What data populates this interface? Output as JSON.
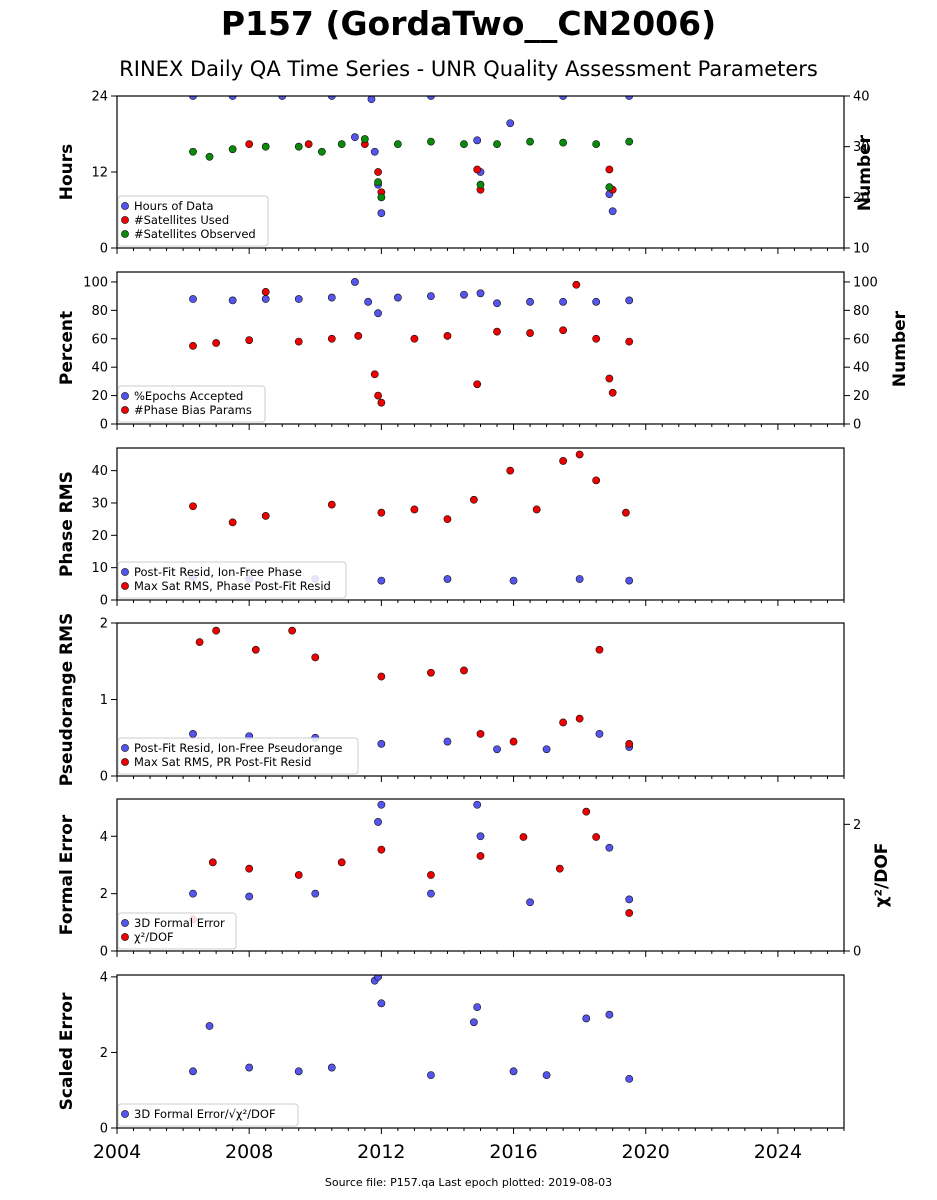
{
  "title": "P157 (GordaTwo__CN2006)",
  "subtitle": "RINEX Daily QA Time Series - UNR Quality Assessment Parameters",
  "footer": "Source file: P157.qa Last epoch plotted: 2019-08-03",
  "colors": {
    "blue": "#5555ee",
    "red": "#ee0000",
    "green": "#0a8a0a",
    "edge": "#111111"
  },
  "x_axis": {
    "min": 2004,
    "max": 2026,
    "ticks": [
      "2004",
      "2008",
      "2012",
      "2016",
      "2020",
      "2024"
    ]
  },
  "chart_data": [
    {
      "type": "scatter",
      "id": "hours",
      "ylabel": "Hours",
      "ylim": [
        0,
        24
      ],
      "yticks": [
        "0",
        "12",
        "24"
      ],
      "y2label": "Number",
      "y2lim": [
        10,
        40
      ],
      "y2ticks": [
        "10",
        "20",
        "30",
        "40"
      ],
      "legend_placement": "lower-left",
      "series": [
        {
          "name": "Hours of Data",
          "color": "blue",
          "axis": "left",
          "x": [
            2006.3,
            2007.5,
            2009.0,
            2010.5,
            2011.2,
            2011.7,
            2011.8,
            2011.9,
            2012.0,
            2013.5,
            2014.9,
            2015.0,
            2015.9,
            2017.5,
            2018.9,
            2019.0,
            2019.5
          ],
          "y": [
            24,
            24,
            24,
            24,
            17.5,
            23.5,
            15.2,
            10.0,
            5.5,
            24,
            17,
            12,
            19.7,
            24,
            8.5,
            5.8,
            24
          ]
        },
        {
          "name": "#Satellites Used",
          "color": "red",
          "axis": "right",
          "x": [
            2008.0,
            2009.8,
            2011.5,
            2011.9,
            2012.0,
            2014.9,
            2015.0,
            2018.9,
            2019.0
          ],
          "y": [
            30.5,
            30.5,
            30.5,
            25.0,
            21.0,
            25.5,
            21.5,
            25.5,
            21.5
          ]
        },
        {
          "name": "#Satellites Observed",
          "color": "green",
          "axis": "right",
          "x": [
            2006.3,
            2006.8,
            2007.5,
            2008.5,
            2009.5,
            2010.2,
            2010.8,
            2011.5,
            2011.9,
            2012.0,
            2012.5,
            2013.5,
            2014.5,
            2015.0,
            2015.5,
            2016.5,
            2017.5,
            2018.5,
            2018.9,
            2019.5
          ],
          "y": [
            29,
            28,
            29.5,
            30,
            30,
            29,
            30.5,
            31.5,
            23,
            20,
            30.5,
            31,
            30.5,
            22.5,
            30.5,
            31,
            30.8,
            30.5,
            22,
            31
          ]
        }
      ]
    },
    {
      "type": "scatter",
      "id": "percent",
      "ylabel": "Percent",
      "ylim": [
        0,
        107
      ],
      "yticks": [
        "0",
        "20",
        "40",
        "60",
        "80",
        "100"
      ],
      "y2label": "Number",
      "y2lim": [
        0,
        107
      ],
      "y2ticks": [
        "0",
        "20",
        "40",
        "60",
        "80",
        "100"
      ],
      "legend_placement": "lower-left",
      "series": [
        {
          "name": "%Epochs Accepted",
          "color": "blue",
          "axis": "left",
          "x": [
            2006.3,
            2007.5,
            2008.5,
            2009.5,
            2010.5,
            2011.2,
            2011.6,
            2011.9,
            2012.5,
            2013.5,
            2014.5,
            2015.0,
            2015.5,
            2016.5,
            2017.5,
            2018.5,
            2019.5
          ],
          "y": [
            88,
            87,
            88,
            88,
            89,
            100,
            86,
            78,
            89,
            90,
            91,
            92,
            85,
            86,
            86,
            86,
            87
          ]
        },
        {
          "name": "#Phase Bias Params",
          "color": "red",
          "axis": "right",
          "x": [
            2006.3,
            2007.0,
            2008.0,
            2008.5,
            2009.5,
            2010.5,
            2011.3,
            2011.8,
            2011.9,
            2012.0,
            2013.0,
            2014.0,
            2014.9,
            2015.5,
            2016.5,
            2017.5,
            2017.9,
            2018.5,
            2018.9,
            2019.0,
            2019.5
          ],
          "y": [
            55,
            57,
            59,
            93,
            58,
            60,
            62,
            35,
            20,
            15,
            60,
            62,
            28,
            65,
            64,
            66,
            98,
            60,
            32,
            22,
            58
          ]
        }
      ]
    },
    {
      "type": "scatter",
      "id": "phase",
      "ylabel": "Phase RMS",
      "ylim": [
        0,
        47
      ],
      "yticks": [
        "0",
        "10",
        "20",
        "30",
        "40"
      ],
      "legend_placement": "lower-left",
      "series": [
        {
          "name": "Post-Fit Resid, Ion-Free Phase",
          "color": "blue",
          "axis": "left",
          "x": [
            2006.3,
            2008.0,
            2010.0,
            2012.0,
            2014.0,
            2016.0,
            2018.0,
            2019.5
          ],
          "y": [
            7,
            6.5,
            6.5,
            6,
            6.5,
            6,
            6.5,
            6
          ]
        },
        {
          "name": "Max Sat RMS, Phase Post-Fit Resid",
          "color": "red",
          "axis": "left",
          "x": [
            2006.3,
            2007.5,
            2008.5,
            2010.5,
            2012.0,
            2013.0,
            2014.0,
            2014.8,
            2015.9,
            2016.7,
            2017.5,
            2018.0,
            2018.5,
            2019.4
          ],
          "y": [
            29,
            24,
            26,
            29.5,
            27,
            28,
            25,
            31,
            40,
            28,
            43,
            45,
            37,
            27
          ]
        }
      ]
    },
    {
      "type": "scatter",
      "id": "pseudorange",
      "ylabel": "Pseudorange RMS",
      "ylim": [
        0,
        2
      ],
      "yticks": [
        "0",
        "1",
        "2"
      ],
      "legend_placement": "lower-left",
      "series": [
        {
          "name": "Post-Fit Resid, Ion-Free Pseudorange",
          "color": "blue",
          "axis": "left",
          "x": [
            2006.3,
            2008.0,
            2010.0,
            2012.0,
            2014.0,
            2015.5,
            2017.0,
            2018.6,
            2019.5
          ],
          "y": [
            0.55,
            0.52,
            0.5,
            0.42,
            0.45,
            0.35,
            0.35,
            0.55,
            0.38
          ]
        },
        {
          "name": "Max Sat RMS, PR Post-Fit Resid",
          "color": "red",
          "axis": "left",
          "x": [
            2006.5,
            2007.0,
            2008.2,
            2009.3,
            2010.0,
            2012.0,
            2013.5,
            2014.5,
            2015.0,
            2016.0,
            2017.5,
            2018.0,
            2018.6,
            2019.5
          ],
          "y": [
            1.75,
            1.9,
            1.65,
            1.9,
            1.55,
            1.3,
            1.35,
            1.38,
            0.55,
            0.45,
            0.7,
            0.75,
            1.65,
            0.42
          ]
        }
      ]
    },
    {
      "type": "scatter",
      "id": "formal",
      "ylabel": "Formal Error",
      "ylim": [
        0,
        5.3
      ],
      "yticks": [
        "0",
        "2",
        "4"
      ],
      "y2label": "χ²/DOF",
      "y2lim": [
        0,
        2.4
      ],
      "y2ticks": [
        "0",
        "2"
      ],
      "legend_placement": "lower-left",
      "series": [
        {
          "name": "3D Formal Error",
          "color": "blue",
          "axis": "left",
          "x": [
            2006.3,
            2008.0,
            2010.0,
            2011.9,
            2012.0,
            2013.5,
            2014.9,
            2015.0,
            2016.5,
            2018.9,
            2019.5
          ],
          "y": [
            2.0,
            1.9,
            2.0,
            4.5,
            5.1,
            2.0,
            5.1,
            4.0,
            1.7,
            3.6,
            1.8
          ]
        },
        {
          "name": "χ²/DOF",
          "color": "red",
          "axis": "right",
          "x": [
            2006.3,
            2006.9,
            2008.0,
            2009.5,
            2010.8,
            2012.0,
            2013.5,
            2015.0,
            2016.3,
            2017.4,
            2018.2,
            2018.5,
            2019.5
          ],
          "y": [
            0.5,
            1.4,
            1.3,
            1.2,
            1.4,
            1.6,
            1.2,
            1.5,
            1.8,
            1.3,
            2.2,
            1.8,
            0.6
          ]
        }
      ]
    },
    {
      "type": "scatter",
      "id": "scaled",
      "ylabel": "Scaled Error",
      "ylim": [
        0,
        4.05
      ],
      "yticks": [
        "0",
        "2",
        "4"
      ],
      "legend_placement": "lower-left",
      "series": [
        {
          "name": "3D Formal Error/√χ²/DOF",
          "color": "blue",
          "axis": "left",
          "x": [
            2006.3,
            2006.8,
            2008.0,
            2009.5,
            2010.5,
            2011.8,
            2011.9,
            2012.0,
            2013.5,
            2014.8,
            2014.9,
            2016.0,
            2017.0,
            2018.2,
            2018.9,
            2019.5
          ],
          "y": [
            1.5,
            2.7,
            1.6,
            1.5,
            1.6,
            3.9,
            4.0,
            3.3,
            1.4,
            2.8,
            3.2,
            1.5,
            1.4,
            2.9,
            3.0,
            1.3
          ]
        }
      ]
    }
  ]
}
